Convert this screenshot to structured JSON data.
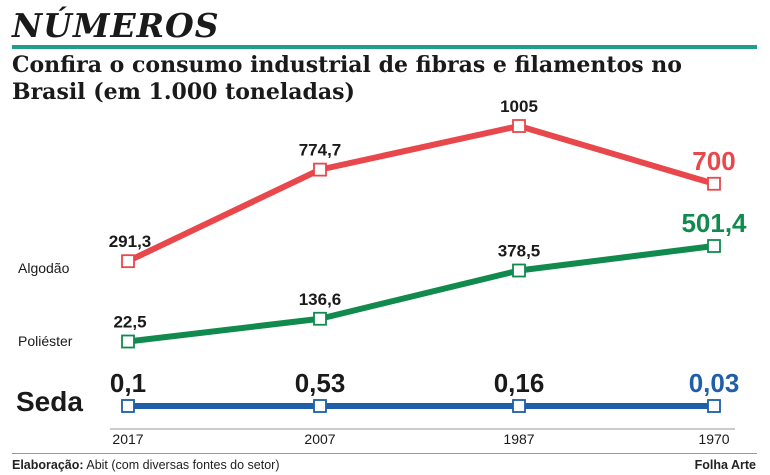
{
  "header": {
    "title": "NÚMEROS",
    "subtitle": "Confira o consumo industrial de fibras e filamentos no Brasil (em 1.000 toneladas)"
  },
  "footer": {
    "credit_label": "Elaboração:",
    "credit_text": "Abit (com diversas fontes do setor)",
    "publisher": "Folha Arte"
  },
  "colors": {
    "algodao": "#e8474b",
    "poliester": "#118a4e",
    "seda": "#1f5ea8",
    "accent_rule": "#1f9e8e"
  },
  "chart_data": {
    "type": "line",
    "title": "Confira o consumo industrial de fibras e filamentos no Brasil (em 1.000 toneladas)",
    "categories": [
      "2017",
      "2007",
      "1987",
      "1970"
    ],
    "series": [
      {
        "name": "Algodão",
        "values": [
          291.3,
          774.7,
          1005,
          700
        ],
        "labels": [
          "291,3",
          "774,7",
          "1005",
          "700"
        ]
      },
      {
        "name": "Poliéster",
        "values": [
          22.5,
          136.6,
          378.5,
          501.4
        ],
        "labels": [
          "22,5",
          "136,6",
          "378,5",
          "501,4"
        ]
      },
      {
        "name": "Seda",
        "values": [
          0.1,
          0.53,
          0.16,
          0.03
        ],
        "labels": [
          "0,1",
          "0,53",
          "0,16",
          "0,03"
        ]
      }
    ]
  }
}
